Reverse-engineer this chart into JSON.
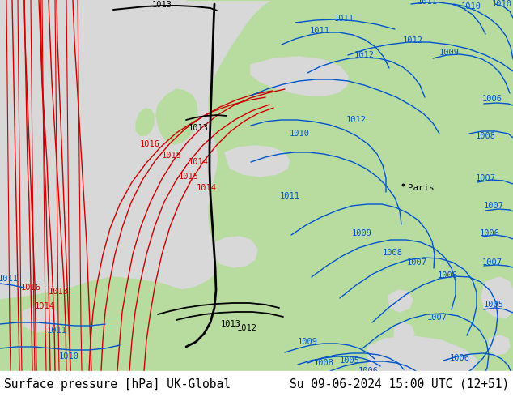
{
  "title_left": "Surface pressure [hPa] UK-Global",
  "title_right": "Su 09-06-2024 15:00 UTC (12+51)",
  "land_color": "#b8dca0",
  "sea_color": "#d8d8d8",
  "title_bg": "#ffffff",
  "red": "#cc0000",
  "blue": "#0055cc",
  "black": "#000000",
  "fig_width": 6.34,
  "fig_height": 4.9,
  "dpi": 100,
  "title_fontsize": 10.5
}
